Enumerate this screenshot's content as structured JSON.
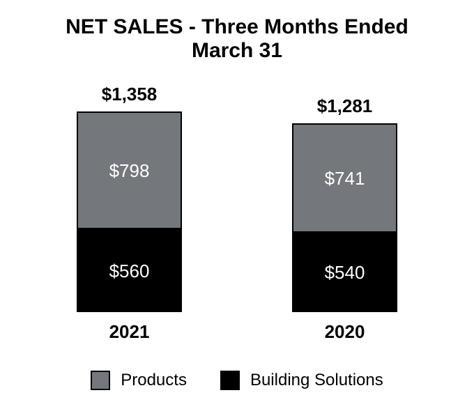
{
  "chart_data": {
    "type": "bar",
    "stacked": true,
    "title": "NET SALES - Three Months Ended March 31",
    "categories": [
      "2021",
      "2020"
    ],
    "series": [
      {
        "name": "Products",
        "color": "#74777b",
        "values": [
          798,
          741
        ],
        "labels": [
          "$798",
          "$741"
        ]
      },
      {
        "name": "Building Solutions",
        "color": "#000000",
        "values": [
          560,
          540
        ],
        "labels": [
          "$560",
          "$540"
        ]
      }
    ],
    "totals": [
      1358,
      1281
    ],
    "totals_labels": [
      "$1,358",
      "$1,281"
    ],
    "legend_position": "bottom",
    "grid": false,
    "axes_visible": false,
    "value_label_color": "#ffffff",
    "text_color": "#000000",
    "background_color": "#ffffff"
  }
}
